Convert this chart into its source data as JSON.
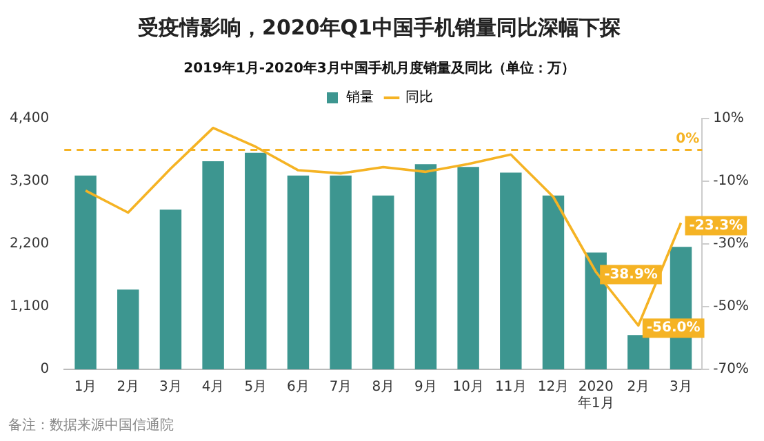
{
  "chart_data": {
    "type": "bar",
    "title": "受疫情影响，2020年Q1中国手机销量同比深幅下探",
    "subtitle": "2019年1月-2020年3月中国手机月度销量及同比（单位：万）",
    "categories": [
      "1月",
      "2月",
      "3月",
      "4月",
      "5月",
      "6月",
      "7月",
      "8月",
      "9月",
      "10月",
      "11月",
      "12月",
      "2020年1月",
      "2月",
      "3月"
    ],
    "series": [
      {
        "name": "销量",
        "color": "#3d9690",
        "values": [
          3400,
          1400,
          2800,
          3650,
          3800,
          3400,
          3400,
          3050,
          3600,
          3550,
          3450,
          3050,
          2050,
          600,
          2150
        ]
      },
      {
        "name": "同比",
        "type": "line",
        "axis": "y2",
        "color": "#f5b324",
        "values": [
          -13,
          -20,
          -6,
          7,
          1,
          -6.5,
          -7.5,
          -5.5,
          -7,
          -4.5,
          -1.5,
          -15,
          -38.9,
          -56.0,
          -23.3
        ],
        "value_labels": [
          null,
          null,
          null,
          null,
          null,
          null,
          null,
          null,
          null,
          null,
          null,
          null,
          "-38.9%",
          "-56.0%",
          "-23.3%"
        ]
      }
    ],
    "ylim": [
      0,
      4400
    ],
    "yticks": [
      {
        "value": 0,
        "label": "0"
      },
      {
        "value": 1100,
        "label": "1,100"
      },
      {
        "value": 2200,
        "label": "2,200"
      },
      {
        "value": 3300,
        "label": "3,300"
      },
      {
        "value": 4400,
        "label": "4,400"
      }
    ],
    "y2lim": [
      -70,
      10
    ],
    "y2ticks": [
      {
        "value": -70,
        "label": "-70%"
      },
      {
        "value": -50,
        "label": "-50%"
      },
      {
        "value": -30,
        "label": "-30%"
      },
      {
        "value": -10,
        "label": "-10%"
      },
      {
        "value": 10,
        "label": "10%"
      }
    ],
    "ref_lines": [
      {
        "axis": "y2",
        "value": 0,
        "label": "0%",
        "color": "#f5b324",
        "line_style": "dashed"
      }
    ],
    "annotations": [
      "备注：数据来源中国信通院"
    ],
    "legend": "top",
    "grid": false,
    "marker": "none",
    "line_style": "solid"
  }
}
